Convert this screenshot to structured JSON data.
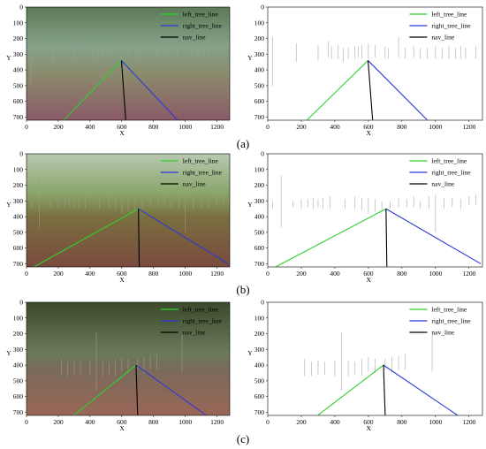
{
  "legend_labels": [
    "left_tree_line",
    "right_tree_line",
    "nav_line"
  ],
  "colors": {
    "left": "#2fd12f",
    "right": "#2b3ad6",
    "nav": "#000000",
    "post": "#b5b5b5"
  },
  "x_ticks": [
    0,
    200,
    400,
    600,
    800,
    1000,
    1200
  ],
  "y_ticks": [
    0,
    100,
    200,
    300,
    400,
    500,
    600,
    700
  ],
  "axis_labels": {
    "x": "X",
    "y": "Y"
  },
  "captions": [
    "(a)",
    "(b)",
    "(c)"
  ],
  "panels": [
    {
      "label": "(a)",
      "scene": "sky",
      "apex": [
        598,
        340
      ],
      "left_start": [
        235,
        718
      ],
      "right_end": [
        950,
        718
      ],
      "nav_end": [
        625,
        718
      ],
      "posts": [
        [
          28,
          190,
          500
        ],
        [
          170,
          230,
          350
        ],
        [
          300,
          240,
          340
        ],
        [
          360,
          220,
          320
        ],
        [
          380,
          250,
          330
        ],
        [
          420,
          240,
          330
        ],
        [
          450,
          260,
          350
        ],
        [
          480,
          260,
          330
        ],
        [
          520,
          250,
          330
        ],
        [
          540,
          250,
          320
        ],
        [
          560,
          240,
          330
        ],
        [
          600,
          230,
          330
        ],
        [
          640,
          240,
          320
        ],
        [
          700,
          250,
          330
        ],
        [
          720,
          260,
          330
        ],
        [
          780,
          190,
          320
        ],
        [
          820,
          260,
          330
        ],
        [
          870,
          250,
          320
        ],
        [
          910,
          260,
          330
        ],
        [
          950,
          260,
          330
        ],
        [
          1000,
          250,
          330
        ],
        [
          1040,
          260,
          330
        ],
        [
          1080,
          250,
          330
        ],
        [
          1120,
          260,
          330
        ],
        [
          1150,
          250,
          330
        ],
        [
          1180,
          260,
          330
        ],
        [
          1240,
          250,
          330
        ]
      ]
    },
    {
      "label": "(b)",
      "scene": "bright",
      "apex": [
        705,
        350
      ],
      "left_start": [
        50,
        718
      ],
      "right_end": [
        1270,
        700
      ],
      "nav_end": [
        710,
        718
      ],
      "posts": [
        [
          30,
          300,
          350
        ],
        [
          80,
          140,
          470
        ],
        [
          150,
          300,
          340
        ],
        [
          200,
          290,
          350
        ],
        [
          240,
          290,
          340
        ],
        [
          270,
          280,
          350
        ],
        [
          300,
          290,
          340
        ],
        [
          330,
          280,
          350
        ],
        [
          370,
          270,
          350
        ],
        [
          460,
          290,
          350
        ],
        [
          520,
          270,
          350
        ],
        [
          560,
          280,
          360
        ],
        [
          600,
          280,
          380
        ],
        [
          640,
          290,
          370
        ],
        [
          680,
          300,
          360
        ],
        [
          730,
          300,
          350
        ],
        [
          780,
          280,
          340
        ],
        [
          830,
          290,
          340
        ],
        [
          870,
          270,
          340
        ],
        [
          910,
          300,
          350
        ],
        [
          960,
          270,
          350
        ],
        [
          1000,
          260,
          500
        ],
        [
          1050,
          280,
          350
        ],
        [
          1100,
          280,
          340
        ],
        [
          1150,
          290,
          350
        ],
        [
          1200,
          270,
          330
        ],
        [
          1240,
          260,
          330
        ]
      ]
    },
    {
      "label": "(c)",
      "scene": "dark",
      "apex": [
        690,
        400
      ],
      "left_start": [
        300,
        718
      ],
      "right_end": [
        1130,
        718
      ],
      "nav_end": [
        700,
        718
      ],
      "posts": [
        [
          220,
          360,
          470
        ],
        [
          260,
          380,
          470
        ],
        [
          300,
          370,
          460
        ],
        [
          340,
          380,
          460
        ],
        [
          400,
          370,
          470
        ],
        [
          440,
          190,
          560
        ],
        [
          480,
          370,
          470
        ],
        [
          520,
          380,
          460
        ],
        [
          560,
          360,
          470
        ],
        [
          600,
          350,
          440
        ],
        [
          640,
          360,
          450
        ],
        [
          700,
          360,
          430
        ],
        [
          740,
          350,
          450
        ],
        [
          780,
          340,
          430
        ],
        [
          820,
          330,
          430
        ],
        [
          980,
          210,
          440
        ]
      ]
    }
  ]
}
